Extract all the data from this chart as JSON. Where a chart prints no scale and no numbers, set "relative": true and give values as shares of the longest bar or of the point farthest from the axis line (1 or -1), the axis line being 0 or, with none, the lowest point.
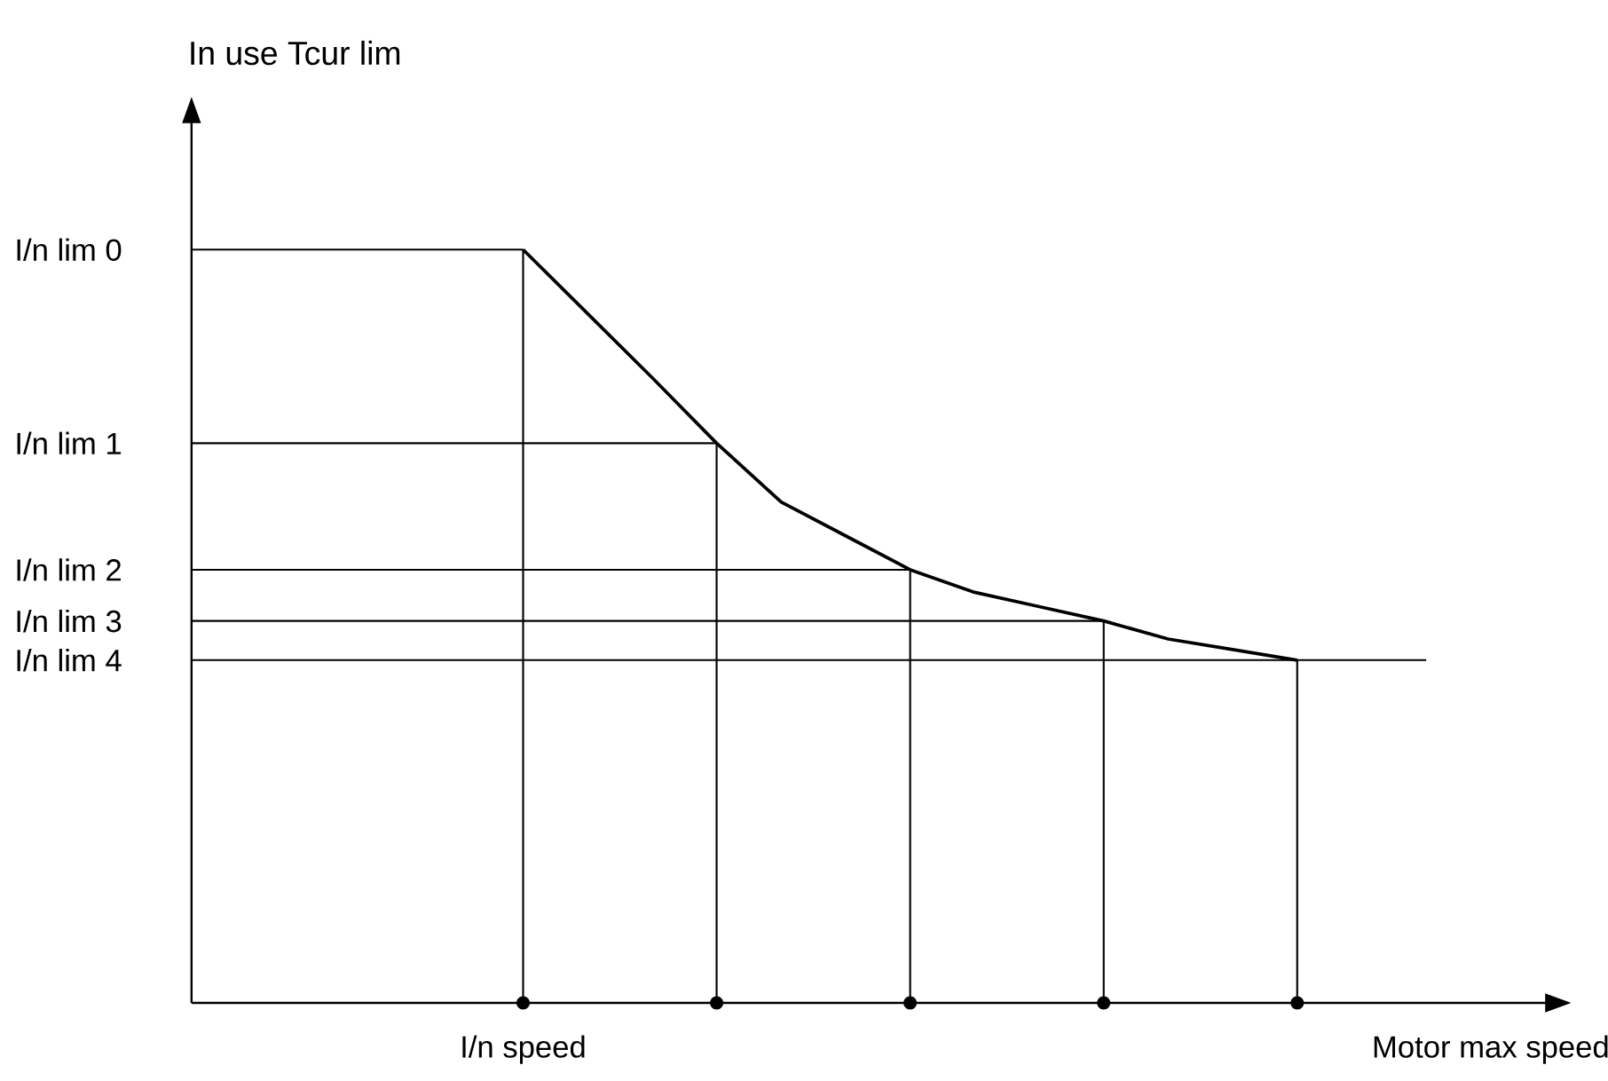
{
  "chart_data": {
    "type": "line",
    "relative": true,
    "annotations": [
      "In use Tcur lim"
    ],
    "categories": [
      null,
      null,
      null,
      null,
      null,
      "I/n speed",
      null,
      null,
      null,
      null,
      null,
      null,
      null,
      null,
      null,
      null,
      null,
      null,
      null,
      null,
      "Motor max speed"
    ],
    "series": [
      {
        "color": "#000000",
        "values": [
          null,
          null,
          null,
          null,
          null,
          1,
          0.915,
          0.83,
          0.743,
          0.665,
          0.62,
          0.575,
          0.545,
          0.526,
          0.507,
          0.483,
          0.469,
          0.455,
          null,
          null,
          null
        ]
      }
    ],
    "tick_labels": "x",
    "ref_lines": [
      {
        "axis": "y",
        "value": 1,
        "label": "I/n lim 0"
      },
      {
        "axis": "y",
        "value": 0.743,
        "label": "I/n lim 1"
      },
      {
        "axis": "y",
        "value": 0.575,
        "label": "I/n lim 2"
      },
      {
        "axis": "y",
        "value": 0.507,
        "label": "I/n lim 3"
      },
      {
        "axis": "y",
        "value": 0.455,
        "label": "I/n lim 4"
      }
    ],
    "marker": "none",
    "line_style": "solid"
  }
}
